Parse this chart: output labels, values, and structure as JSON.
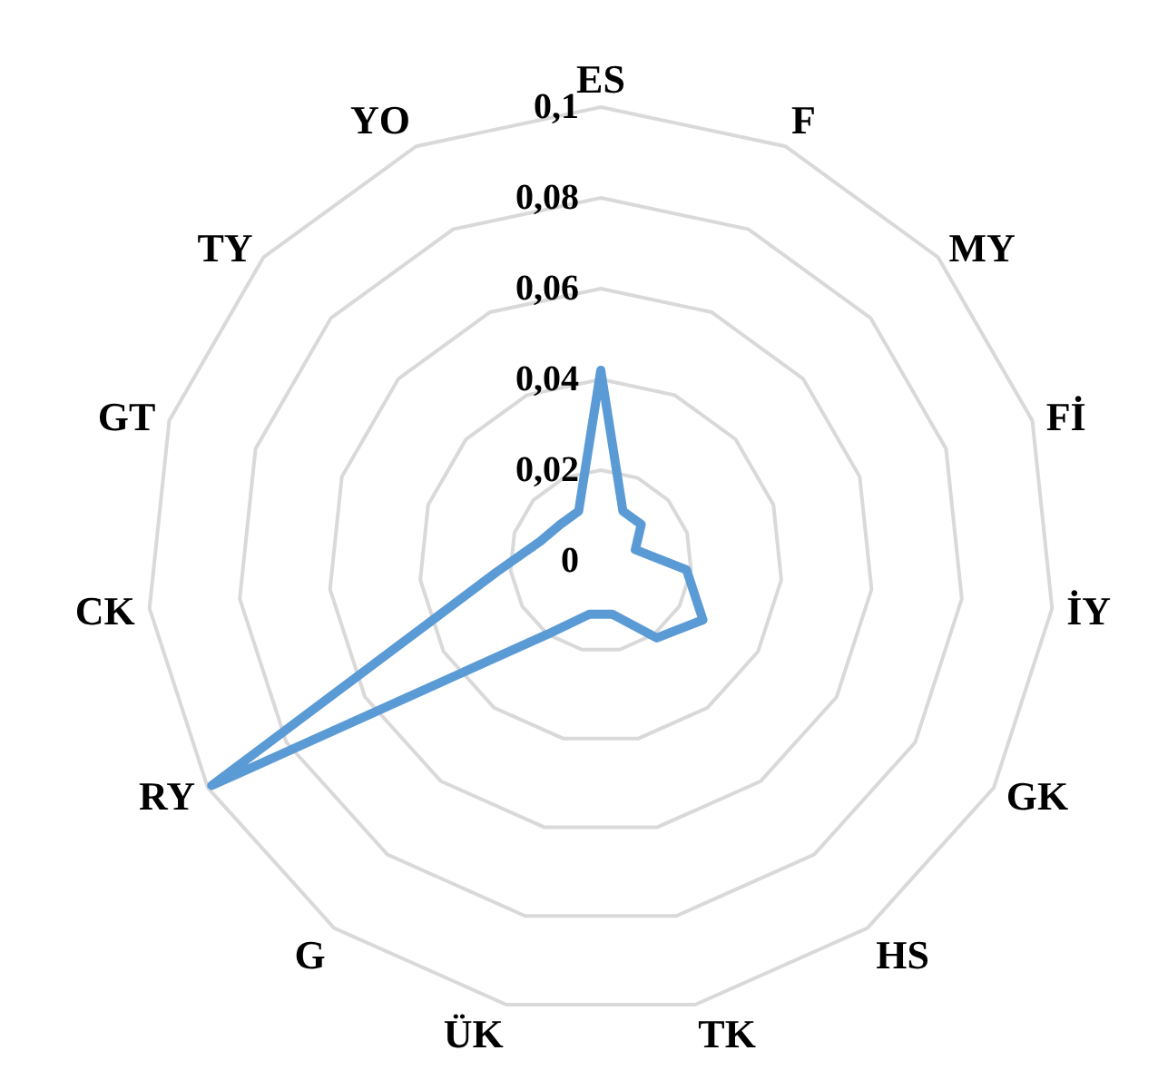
{
  "chart_data": {
    "type": "radar",
    "categories": [
      "ES",
      "F",
      "MY",
      "Fİ",
      "İY",
      "GK",
      "HS",
      "TK",
      "ÜK",
      "G",
      "RY",
      "CK",
      "GT",
      "TY",
      "YO"
    ],
    "series": [
      {
        "color": "#5b9bd5",
        "values": [
          0.042,
          0.012,
          0.012,
          0.008,
          0.019,
          0.026,
          0.021,
          0.012,
          0.012,
          0.02,
          0.099,
          0.023,
          0.014,
          0.012,
          0.012
        ]
      }
    ],
    "ylim": [
      0,
      0.1
    ],
    "yticks": [
      {
        "value": 0,
        "label": "0"
      },
      {
        "value": 0.02,
        "label": "0,02"
      },
      {
        "value": 0.04,
        "label": "0,04"
      },
      {
        "value": 0.06,
        "label": "0,06"
      },
      {
        "value": 0.08,
        "label": "0,08"
      },
      {
        "value": 0.1,
        "label": "0,1"
      }
    ],
    "grid": true,
    "marker": "none",
    "legend": false
  }
}
